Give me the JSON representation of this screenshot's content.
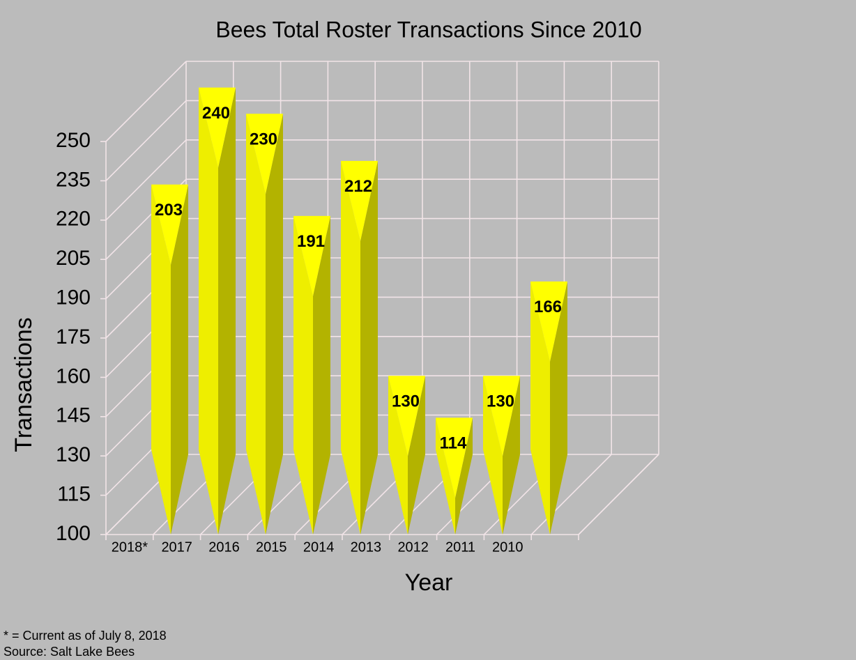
{
  "chart_data": {
    "type": "bar3d",
    "title": "Bees Total Roster Transactions Since 2010",
    "x_label": "Year",
    "y_label": "Transactions",
    "categories": [
      "2018*",
      "2017",
      "2016",
      "2015",
      "2014",
      "2013",
      "2012",
      "2011",
      "2010"
    ],
    "values": [
      203,
      240,
      230,
      191,
      212,
      130,
      114,
      130,
      166
    ],
    "color": "#ffff00",
    "ylim": [
      100,
      250
    ],
    "yticks": [
      100,
      115,
      130,
      145,
      160,
      175,
      190,
      205,
      220,
      235,
      250
    ],
    "grid": true
  },
  "notes": [
    "* = Current as of July 8, 2018",
    "Source: Salt Lake Bees"
  ]
}
